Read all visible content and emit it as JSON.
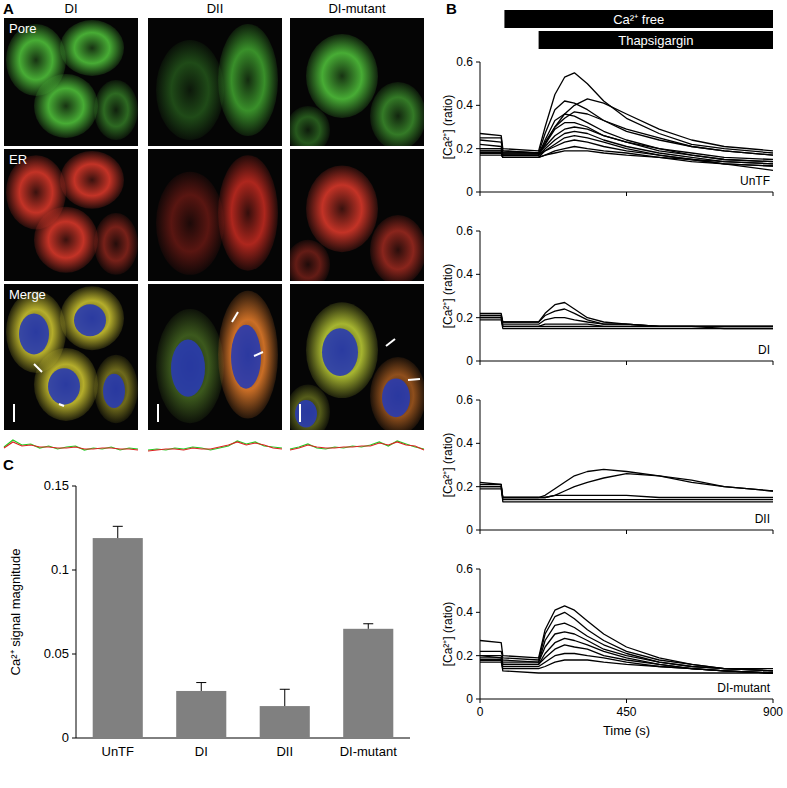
{
  "panel_labels": [
    "A",
    "B",
    "C"
  ],
  "panel_a": {
    "columns": [
      "DI",
      "DII",
      "DI-mutant"
    ],
    "rows": [
      "Pore",
      "ER",
      "Merge"
    ],
    "profiles": [
      {
        "green": [
          0.45,
          0.8,
          0.55,
          0.6,
          0.4,
          0.5,
          0.35,
          0.45,
          0.5,
          0.3,
          0.4,
          0.35,
          0.45,
          0.3,
          0.4,
          0.35
        ],
        "red": [
          0.4,
          0.7,
          0.5,
          0.55,
          0.45,
          0.45,
          0.4,
          0.4,
          0.45,
          0.35,
          0.35,
          0.4,
          0.4,
          0.35,
          0.35,
          0.3
        ]
      },
      {
        "green": [
          0.3,
          0.35,
          0.3,
          0.4,
          0.35,
          0.45,
          0.4,
          0.3,
          0.4,
          0.5,
          0.75,
          0.6,
          0.7,
          0.5,
          0.45,
          0.4
        ],
        "red": [
          0.25,
          0.3,
          0.35,
          0.35,
          0.3,
          0.4,
          0.35,
          0.35,
          0.45,
          0.55,
          0.7,
          0.55,
          0.65,
          0.55,
          0.4,
          0.35
        ]
      },
      {
        "green": [
          0.35,
          0.45,
          0.6,
          0.4,
          0.35,
          0.45,
          0.4,
          0.5,
          0.45,
          0.55,
          0.7,
          0.5,
          0.75,
          0.6,
          0.45,
          0.35
        ],
        "red": [
          0.3,
          0.4,
          0.55,
          0.45,
          0.4,
          0.4,
          0.45,
          0.45,
          0.5,
          0.5,
          0.65,
          0.55,
          0.7,
          0.55,
          0.5,
          0.3
        ]
      }
    ]
  },
  "chart_data": [
    {
      "type": "line",
      "title": "UnTF",
      "y_label": "[Ca²⁺] (ratio)",
      "tick_labels": "y",
      "xlim": [
        0,
        900
      ],
      "xticks": [
        0,
        450,
        900
      ],
      "ylim": [
        0,
        0.6
      ],
      "yticks": [
        0,
        0.2,
        0.4,
        0.6
      ],
      "annotations": [
        {
          "text": "Ca²⁺ free",
          "start": 75,
          "end": 900
        },
        {
          "text": "Thapsigargin",
          "start": 180,
          "end": 900
        }
      ],
      "x": [
        0,
        65,
        70,
        180,
        200,
        230,
        260,
        290,
        330,
        380,
        450,
        550,
        650,
        750,
        900
      ],
      "series": [
        {
          "color": "#000000",
          "values": [
            0.27,
            0.26,
            0.2,
            0.19,
            0.3,
            0.45,
            0.53,
            0.55,
            0.5,
            0.42,
            0.34,
            0.27,
            0.22,
            0.2,
            0.18
          ]
        },
        {
          "color": "#000000",
          "values": [
            0.25,
            0.25,
            0.19,
            0.18,
            0.27,
            0.38,
            0.42,
            0.41,
            0.38,
            0.33,
            0.28,
            0.24,
            0.21,
            0.19,
            0.17
          ]
        },
        {
          "color": "#000000",
          "values": [
            0.2,
            0.2,
            0.18,
            0.18,
            0.22,
            0.3,
            0.36,
            0.4,
            0.43,
            0.41,
            0.36,
            0.29,
            0.24,
            0.21,
            0.19
          ]
        },
        {
          "color": "#000000",
          "values": [
            0.19,
            0.19,
            0.17,
            0.17,
            0.24,
            0.33,
            0.36,
            0.35,
            0.32,
            0.28,
            0.24,
            0.2,
            0.18,
            0.16,
            0.15
          ]
        },
        {
          "color": "#000000",
          "values": [
            0.18,
            0.18,
            0.17,
            0.17,
            0.22,
            0.29,
            0.32,
            0.32,
            0.3,
            0.26,
            0.23,
            0.19,
            0.17,
            0.15,
            0.14
          ]
        },
        {
          "color": "#000000",
          "values": [
            0.22,
            0.21,
            0.18,
            0.18,
            0.21,
            0.26,
            0.29,
            0.3,
            0.29,
            0.26,
            0.23,
            0.2,
            0.17,
            0.15,
            0.14
          ]
        },
        {
          "color": "#000000",
          "values": [
            0.19,
            0.19,
            0.17,
            0.17,
            0.2,
            0.24,
            0.27,
            0.28,
            0.27,
            0.24,
            0.21,
            0.18,
            0.16,
            0.14,
            0.13
          ]
        },
        {
          "color": "#000000",
          "values": [
            0.18,
            0.18,
            0.16,
            0.16,
            0.19,
            0.22,
            0.25,
            0.26,
            0.25,
            0.23,
            0.2,
            0.17,
            0.15,
            0.13,
            0.12
          ]
        },
        {
          "color": "#000000",
          "values": [
            0.2,
            0.2,
            0.17,
            0.17,
            0.19,
            0.21,
            0.23,
            0.24,
            0.23,
            0.21,
            0.19,
            0.17,
            0.15,
            0.13,
            0.12
          ]
        },
        {
          "color": "#000000",
          "values": [
            0.17,
            0.17,
            0.16,
            0.16,
            0.17,
            0.19,
            0.2,
            0.21,
            0.2,
            0.19,
            0.18,
            0.16,
            0.14,
            0.13,
            0.1
          ]
        },
        {
          "color": "#000000",
          "values": [
            0.24,
            0.23,
            0.19,
            0.18,
            0.23,
            0.3,
            0.34,
            0.37,
            0.36,
            0.33,
            0.29,
            0.25,
            0.21,
            0.19,
            0.17
          ]
        },
        {
          "color": "#000000",
          "values": [
            0.18,
            0.18,
            0.16,
            0.16,
            0.17,
            0.18,
            0.19,
            0.19,
            0.19,
            0.18,
            0.17,
            0.16,
            0.15,
            0.14,
            0.13
          ]
        }
      ]
    },
    {
      "type": "line",
      "title": "DI",
      "y_label": "[Ca²⁺] (ratio)",
      "tick_labels": "y",
      "xlim": [
        0,
        900
      ],
      "xticks": [
        0,
        450,
        900
      ],
      "ylim": [
        0,
        0.6
      ],
      "yticks": [
        0,
        0.2,
        0.4,
        0.6
      ],
      "x": [
        0,
        65,
        70,
        180,
        200,
        230,
        260,
        290,
        330,
        380,
        450,
        550,
        650,
        750,
        900
      ],
      "series": [
        {
          "color": "#000000",
          "values": [
            0.22,
            0.22,
            0.18,
            0.18,
            0.22,
            0.26,
            0.27,
            0.24,
            0.2,
            0.18,
            0.17,
            0.16,
            0.16,
            0.16,
            0.16
          ]
        },
        {
          "color": "#000000",
          "values": [
            0.21,
            0.21,
            0.18,
            0.18,
            0.21,
            0.23,
            0.24,
            0.22,
            0.19,
            0.17,
            0.17,
            0.16,
            0.16,
            0.16,
            0.16
          ]
        },
        {
          "color": "#000000",
          "values": [
            0.2,
            0.2,
            0.17,
            0.17,
            0.19,
            0.2,
            0.2,
            0.19,
            0.18,
            0.17,
            0.17,
            0.16,
            0.16,
            0.16,
            0.16
          ]
        },
        {
          "color": "#000000",
          "values": [
            0.2,
            0.2,
            0.16,
            0.16,
            0.17,
            0.17,
            0.17,
            0.17,
            0.17,
            0.16,
            0.16,
            0.16,
            0.16,
            0.15,
            0.15
          ]
        },
        {
          "color": "#000000",
          "values": [
            0.19,
            0.19,
            0.15,
            0.15,
            0.15,
            0.15,
            0.15,
            0.15,
            0.15,
            0.15,
            0.15,
            0.15,
            0.15,
            0.15,
            0.15
          ]
        },
        {
          "color": "#000000",
          "values": [
            0.21,
            0.21,
            0.16,
            0.16,
            0.16,
            0.16,
            0.16,
            0.16,
            0.16,
            0.16,
            0.16,
            0.16,
            0.16,
            0.16,
            0.16
          ]
        }
      ]
    },
    {
      "type": "line",
      "title": "DII",
      "y_label": "[Ca²⁺] (ratio)",
      "tick_labels": "y",
      "xlim": [
        0,
        900
      ],
      "xticks": [
        0,
        450,
        900
      ],
      "ylim": [
        0,
        0.6
      ],
      "yticks": [
        0,
        0.2,
        0.4,
        0.6
      ],
      "x": [
        0,
        65,
        70,
        180,
        200,
        230,
        260,
        290,
        330,
        380,
        450,
        550,
        650,
        750,
        900
      ],
      "series": [
        {
          "color": "#000000",
          "values": [
            0.22,
            0.21,
            0.15,
            0.15,
            0.16,
            0.19,
            0.22,
            0.25,
            0.27,
            0.28,
            0.27,
            0.25,
            0.22,
            0.2,
            0.18
          ]
        },
        {
          "color": "#000000",
          "values": [
            0.2,
            0.2,
            0.15,
            0.15,
            0.15,
            0.16,
            0.18,
            0.2,
            0.22,
            0.24,
            0.26,
            0.25,
            0.23,
            0.2,
            0.18
          ]
        },
        {
          "color": "#000000",
          "values": [
            0.2,
            0.2,
            0.15,
            0.15,
            0.15,
            0.16,
            0.16,
            0.16,
            0.16,
            0.16,
            0.16,
            0.15,
            0.15,
            0.15,
            0.15
          ]
        },
        {
          "color": "#000000",
          "values": [
            0.19,
            0.19,
            0.14,
            0.14,
            0.14,
            0.14,
            0.14,
            0.14,
            0.14,
            0.14,
            0.14,
            0.14,
            0.14,
            0.14,
            0.14
          ]
        },
        {
          "color": "#000000",
          "values": [
            0.21,
            0.21,
            0.13,
            0.13,
            0.13,
            0.13,
            0.13,
            0.13,
            0.13,
            0.13,
            0.13,
            0.13,
            0.13,
            0.13,
            0.13
          ]
        }
      ]
    },
    {
      "type": "line",
      "title": "DI-mutant",
      "y_label": "[Ca²⁺] (ratio)",
      "x_label": "Time (s)",
      "xlim": [
        0,
        900
      ],
      "xticks": [
        0,
        450,
        900
      ],
      "ylim": [
        0,
        0.6
      ],
      "yticks": [
        0,
        0.2,
        0.4,
        0.6
      ],
      "x": [
        0,
        65,
        70,
        180,
        200,
        230,
        260,
        290,
        330,
        380,
        450,
        550,
        650,
        750,
        900
      ],
      "series": [
        {
          "color": "#000000",
          "values": [
            0.27,
            0.26,
            0.2,
            0.19,
            0.32,
            0.41,
            0.43,
            0.41,
            0.36,
            0.3,
            0.24,
            0.19,
            0.16,
            0.14,
            0.14
          ]
        },
        {
          "color": "#000000",
          "values": [
            0.22,
            0.22,
            0.19,
            0.18,
            0.3,
            0.38,
            0.4,
            0.37,
            0.32,
            0.27,
            0.22,
            0.18,
            0.16,
            0.14,
            0.13
          ]
        },
        {
          "color": "#000000",
          "values": [
            0.2,
            0.2,
            0.18,
            0.17,
            0.27,
            0.34,
            0.35,
            0.33,
            0.29,
            0.25,
            0.21,
            0.17,
            0.15,
            0.14,
            0.13
          ]
        },
        {
          "color": "#000000",
          "values": [
            0.19,
            0.19,
            0.17,
            0.17,
            0.24,
            0.3,
            0.31,
            0.3,
            0.27,
            0.23,
            0.2,
            0.17,
            0.15,
            0.14,
            0.13
          ]
        },
        {
          "color": "#000000",
          "values": [
            0.18,
            0.18,
            0.16,
            0.16,
            0.21,
            0.26,
            0.28,
            0.27,
            0.25,
            0.22,
            0.19,
            0.16,
            0.14,
            0.13,
            0.12
          ]
        },
        {
          "color": "#000000",
          "values": [
            0.2,
            0.19,
            0.16,
            0.16,
            0.19,
            0.23,
            0.25,
            0.24,
            0.23,
            0.2,
            0.18,
            0.16,
            0.14,
            0.13,
            0.12
          ]
        },
        {
          "color": "#000000",
          "values": [
            0.18,
            0.18,
            0.15,
            0.15,
            0.17,
            0.2,
            0.21,
            0.21,
            0.2,
            0.19,
            0.17,
            0.15,
            0.14,
            0.13,
            0.12
          ]
        },
        {
          "color": "#000000",
          "values": [
            0.17,
            0.17,
            0.14,
            0.14,
            0.15,
            0.17,
            0.18,
            0.18,
            0.18,
            0.17,
            0.16,
            0.15,
            0.14,
            0.13,
            0.12
          ]
        },
        {
          "color": "#000000",
          "values": [
            0.18,
            0.18,
            0.13,
            0.12,
            0.12,
            0.12,
            0.12,
            0.12,
            0.12,
            0.12,
            0.12,
            0.12,
            0.12,
            0.12,
            0.12
          ]
        }
      ]
    },
    {
      "type": "bar",
      "y_label": "Ca²⁺ signal magnitude",
      "categories": [
        "UnTF",
        "DI",
        "DII",
        "DI-mutant"
      ],
      "values": [
        0.119,
        0.028,
        0.019,
        0.065
      ],
      "errors": [
        0.007,
        0.005,
        0.01,
        0.003
      ],
      "color": "#808080",
      "ylim": [
        0,
        0.15
      ],
      "yticks": [
        0,
        0.05,
        0.1,
        0.15
      ]
    }
  ]
}
